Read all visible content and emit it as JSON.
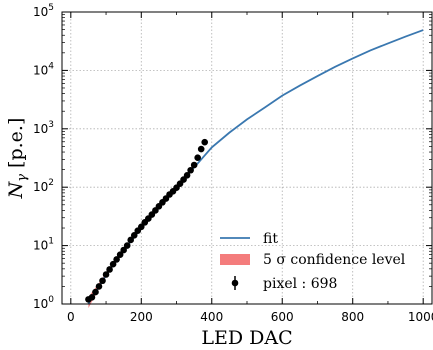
{
  "chart_data": {
    "type": "scatter",
    "title": "",
    "xlabel": "LED DAC",
    "ylabel": "N_γ [p.e.]",
    "xlim": [
      -25,
      1025
    ],
    "ylim": [
      1,
      100000
    ],
    "yscale": "log",
    "grid": true,
    "legend_position": "bottom-right",
    "x_ticks": [
      0,
      200,
      400,
      600,
      800,
      1000
    ],
    "x_tick_labels": [
      "0",
      "200",
      "400",
      "600",
      "800",
      "1000"
    ],
    "y_ticks": [
      1,
      10,
      100,
      1000,
      10000,
      100000
    ],
    "legend": [
      {
        "label": "fit",
        "kind": "line",
        "color": "#3a78b0"
      },
      {
        "label": "5 σ confidence level",
        "kind": "band",
        "color": "#f47c7c"
      },
      {
        "label": "pixel : 698",
        "kind": "errorbar-point",
        "color": "#000000"
      }
    ],
    "series": [
      {
        "name": "pixel : 698",
        "kind": "points",
        "x": [
          50,
          60,
          70,
          80,
          90,
          100,
          110,
          120,
          130,
          140,
          150,
          160,
          170,
          180,
          190,
          200,
          210,
          220,
          230,
          240,
          250,
          260,
          270,
          280,
          290,
          300,
          310,
          320,
          330,
          340,
          350,
          360,
          370,
          380
        ],
        "y": [
          1.2,
          1.3,
          1.6,
          2.0,
          2.5,
          3.2,
          3.9,
          4.8,
          5.8,
          7.0,
          8.4,
          10,
          12.5,
          15,
          18,
          21,
          25,
          29,
          34,
          40,
          47,
          55,
          64,
          75,
          85,
          98,
          115,
          135,
          160,
          195,
          240,
          320,
          450,
          590
        ]
      },
      {
        "name": "fit",
        "kind": "line",
        "x": [
          50,
          60,
          70,
          80,
          90,
          100,
          120,
          140,
          160,
          180,
          200,
          220,
          240,
          260,
          280,
          300,
          320,
          340,
          360,
          380,
          400,
          450,
          500,
          550,
          600,
          650,
          700,
          750,
          800,
          850,
          900,
          950,
          1000
        ],
        "y": [
          1.0,
          1.3,
          1.6,
          2.0,
          2.5,
          3.1,
          4.7,
          6.9,
          9.9,
          14,
          20,
          28,
          39,
          53,
          73,
          100,
          136,
          186,
          255,
          350,
          480,
          860,
          1450,
          2300,
          3700,
          5500,
          8000,
          11500,
          16000,
          22000,
          29000,
          38000,
          49000
        ]
      },
      {
        "name": "5 σ confidence level",
        "kind": "band",
        "x": [
          50,
          60,
          70,
          80,
          90,
          100,
          120,
          140,
          160,
          180,
          200,
          220,
          240,
          260,
          280,
          300,
          320,
          340,
          360,
          380,
          400,
          450,
          500,
          550,
          600,
          650,
          700,
          750,
          800,
          850,
          900,
          950,
          1000
        ],
        "y_low": [
          0.85,
          1.1,
          1.4,
          1.8,
          2.3,
          2.9,
          4.5,
          6.7,
          9.7,
          13.8,
          19.7,
          27.6,
          38.5,
          52.5,
          72.3,
          99,
          134.5,
          184,
          252,
          346,
          475,
          851,
          1433,
          2271,
          3648,
          5419,
          7872,
          11298,
          15700,
          21560,
          28388,
          37164,
          47824
        ],
        "y_high": [
          1.3,
          1.6,
          1.9,
          2.3,
          2.8,
          3.4,
          5.0,
          7.2,
          10.2,
          14.3,
          20.4,
          28.5,
          39.5,
          53.5,
          73.7,
          101,
          137.5,
          188,
          258,
          354,
          485,
          869,
          1467,
          2329,
          3752,
          5581,
          8128,
          11702,
          16300,
          22440,
          29612,
          38836,
          50176
        ]
      }
    ]
  }
}
